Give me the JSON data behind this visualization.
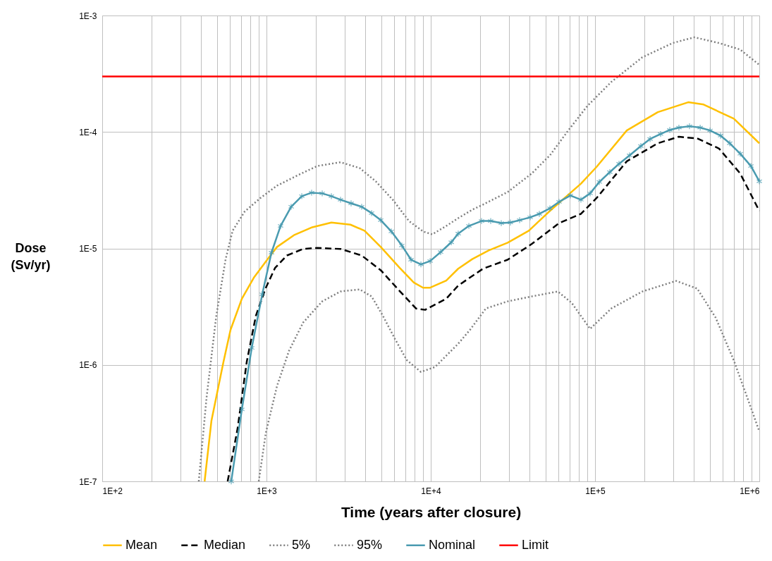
{
  "chart_data": {
    "type": "line",
    "xlabel": "Time (years after closure)",
    "ylabel": "Dose (Sv/yr)",
    "log": "xy",
    "grid": true,
    "legend": "bottom",
    "xlim": [
      100,
      1000000
    ],
    "ylim": [
      1e-07,
      0.001
    ],
    "xticks": [
      {
        "value": 100,
        "label": "1E+2"
      },
      {
        "value": 200,
        "label": null
      },
      {
        "value": 300,
        "label": null
      },
      {
        "value": 400,
        "label": null
      },
      {
        "value": 500,
        "label": null
      },
      {
        "value": 600,
        "label": null
      },
      {
        "value": 700,
        "label": null
      },
      {
        "value": 800,
        "label": null
      },
      {
        "value": 900,
        "label": null
      },
      {
        "value": 1000,
        "label": "1E+3"
      },
      {
        "value": 2000,
        "label": null
      },
      {
        "value": 3000,
        "label": null
      },
      {
        "value": 4000,
        "label": null
      },
      {
        "value": 5000,
        "label": null
      },
      {
        "value": 6000,
        "label": null
      },
      {
        "value": 7000,
        "label": null
      },
      {
        "value": 8000,
        "label": null
      },
      {
        "value": 9000,
        "label": null
      },
      {
        "value": 10000,
        "label": "1E+4"
      },
      {
        "value": 20000,
        "label": null
      },
      {
        "value": 30000,
        "label": null
      },
      {
        "value": 40000,
        "label": null
      },
      {
        "value": 50000,
        "label": null
      },
      {
        "value": 60000,
        "label": null
      },
      {
        "value": 70000,
        "label": null
      },
      {
        "value": 80000,
        "label": null
      },
      {
        "value": 90000,
        "label": null
      },
      {
        "value": 100000,
        "label": "1E+5"
      },
      {
        "value": 200000,
        "label": null
      },
      {
        "value": 300000,
        "label": null
      },
      {
        "value": 400000,
        "label": null
      },
      {
        "value": 500000,
        "label": null
      },
      {
        "value": 600000,
        "label": null
      },
      {
        "value": 700000,
        "label": null
      },
      {
        "value": 800000,
        "label": null
      },
      {
        "value": 900000,
        "label": null
      },
      {
        "value": 1000000,
        "label": "1E+6"
      }
    ],
    "yticks": [
      {
        "value": 1e-07,
        "label": "1E-7"
      },
      {
        "value": 1e-06,
        "label": "1E-6"
      },
      {
        "value": 1e-05,
        "label": "1E-5"
      },
      {
        "value": 0.0001,
        "label": "1E-4"
      },
      {
        "value": 0.001,
        "label": "1E-3"
      }
    ],
    "series": [
      {
        "name": "Mean",
        "color": "#ffc000",
        "line_style": "solid",
        "x": [
          420,
          462,
          547,
          604,
          708,
          837,
          1050,
          1159,
          1469,
          1900,
          2483,
          3243,
          3953,
          4960,
          6473,
          7883,
          8974,
          9910,
          12420,
          14690,
          17900,
          22490,
          29380,
          39530,
          53110,
          82040,
          102000,
          156000,
          241000,
          369000,
          458000,
          700000,
          1000000
        ],
        "values": [
          1e-07,
          3.3e-07,
          1.06e-06,
          2e-06,
          3.7e-06,
          5.6e-06,
          8.6e-06,
          1.03e-05,
          1.3e-05,
          1.52e-05,
          1.67e-05,
          1.6e-05,
          1.42e-05,
          1.03e-05,
          6.8e-06,
          5.1e-06,
          4.6e-06,
          4.6e-06,
          5.3e-06,
          6.7e-06,
          8.1e-06,
          9.6e-06,
          1.12e-05,
          1.42e-05,
          2.1e-05,
          3.6e-05,
          5e-05,
          0.000103,
          0.000148,
          0.00018,
          0.000172,
          0.00013,
          8e-05
        ]
      },
      {
        "name": "Median",
        "color": "#000000",
        "line_style": "dashed",
        "x": [
          580,
          667,
          758,
          862,
          991,
          1127,
          1332,
          1671,
          2037,
          2822,
          3796,
          4960,
          6473,
          8128,
          9247,
          12420,
          14690,
          20800,
          29380,
          41100,
          60400,
          82040,
          102000,
          156000,
          241000,
          324000,
          419000,
          569000,
          765000,
          1000000
        ],
        "values": [
          1e-07,
          2.85e-07,
          1.06e-06,
          2.65e-06,
          4.6e-06,
          6.8e-06,
          8.7e-06,
          9.9e-06,
          1.01e-05,
          9.9e-06,
          8.7e-06,
          6.5e-06,
          4.3e-06,
          3.05e-06,
          2.97e-06,
          3.7e-06,
          4.8e-06,
          6.7e-06,
          8e-06,
          1.09e-05,
          1.65e-05,
          1.98e-05,
          2.7e-05,
          5.6e-05,
          8e-05,
          9.1e-05,
          8.8e-05,
          7.2e-05,
          4.4e-05,
          2.1e-05
        ]
      },
      {
        "name": "5%",
        "color": "#7f7f7f",
        "line_style": "dotted",
        "x": [
          897,
          991,
          1159,
          1371,
          1671,
          2183,
          2822,
          3690,
          4365,
          5105,
          6039,
          7145,
          8710,
          10620,
          14690,
          17380,
          21630,
          29380,
          41100,
          59290,
          72100,
          93330,
          125600,
          194100,
          311900,
          419000,
          541900,
          700000,
          871000,
          1000000
        ],
        "values": [
          1e-07,
          2.62e-07,
          6.6e-07,
          1.32e-06,
          2.31e-06,
          3.51e-06,
          4.27e-06,
          4.45e-06,
          3.87e-06,
          2.65e-06,
          1.68e-06,
          1.1e-06,
          8.7e-07,
          9.6e-07,
          1.52e-06,
          2.01e-06,
          3.05e-06,
          3.51e-06,
          3.87e-06,
          4.27e-06,
          3.41e-06,
          2.04e-06,
          3.05e-06,
          4.27e-06,
          5.26e-06,
          4.52e-06,
          2.55e-06,
          1.09e-06,
          4.65e-07,
          2.69e-07
        ]
      },
      {
        "name": "95%",
        "color": "#7f7f7f",
        "line_style": "dotted",
        "x": [
          387,
          432,
          495,
          564,
          622,
          736,
          924,
          1159,
          1560,
          2037,
          2822,
          3690,
          4624,
          5866,
          7362,
          8974,
          10200,
          12420,
          14690,
          17900,
          20800,
          29380,
          41100,
          53110,
          68700,
          89700,
          125600,
          194100,
          296500,
          402700,
          569000,
          765000,
          1000000
        ],
        "values": [
          1e-07,
          5.3e-07,
          2.65e-06,
          8.1e-06,
          1.42e-05,
          2.07e-05,
          2.73e-05,
          3.46e-05,
          4.27e-05,
          5.1e-05,
          5.5e-05,
          4.9e-05,
          3.77e-05,
          2.62e-05,
          1.72e-05,
          1.4e-05,
          1.32e-05,
          1.56e-05,
          1.82e-05,
          2.15e-05,
          2.38e-05,
          3.05e-05,
          4.39e-05,
          6.3e-05,
          0.000103,
          0.000167,
          0.000269,
          0.000438,
          0.00058,
          0.00065,
          0.00058,
          0.00051,
          0.000377
        ]
      },
      {
        "name": "Nominal",
        "color": "#4a9bb0",
        "line_style": "solid",
        "marker": "cross",
        "x": [
          610,
          708,
          813,
          942,
          1072,
          1218,
          1413,
          1640,
          1882,
          2183,
          2483,
          2822,
          3273,
          3796,
          4365,
          4960,
          5754,
          6668,
          7586,
          8710,
          9910,
          11480,
          13330,
          14690,
          17060,
          20370,
          23170,
          26860,
          30550,
          34750,
          40270,
          45810,
          53110,
          60400,
          70790,
          82040,
          93330,
          106200,
          123000,
          140000,
          162200,
          190100,
          216300,
          250600,
          285100,
          324000,
          375800,
          436500,
          501200,
          580800,
          660700,
          765600,
          889200,
          1000000
        ],
        "values": [
          1e-07,
          4.15e-07,
          1.4e-06,
          4.04e-06,
          9.2e-06,
          1.56e-05,
          2.28e-05,
          2.81e-05,
          3.01e-05,
          2.97e-05,
          2.81e-05,
          2.62e-05,
          2.44e-05,
          2.28e-05,
          2.01e-05,
          1.75e-05,
          1.4e-05,
          1.06e-05,
          8e-06,
          7.3e-06,
          7.8e-06,
          9.3e-06,
          1.13e-05,
          1.34e-05,
          1.56e-05,
          1.72e-05,
          1.72e-05,
          1.65e-05,
          1.67e-05,
          1.75e-05,
          1.85e-05,
          1.98e-05,
          2.21e-05,
          2.51e-05,
          2.85e-05,
          2.62e-05,
          2.97e-05,
          3.72e-05,
          4.52e-05,
          5.33e-05,
          6.3e-05,
          7.57e-05,
          8.7e-05,
          9.6e-05,
          0.000104,
          0.000109,
          0.000112,
          0.000109,
          0.000103,
          9.3e-05,
          8e-05,
          6.5e-05,
          5.1e-05,
          3.77e-05
        ]
      },
      {
        "name": "Limit",
        "color": "#ff0000",
        "line_style": "solid",
        "x": [
          100,
          1000000
        ],
        "values": [
          0.0003,
          0.0003
        ]
      }
    ]
  }
}
